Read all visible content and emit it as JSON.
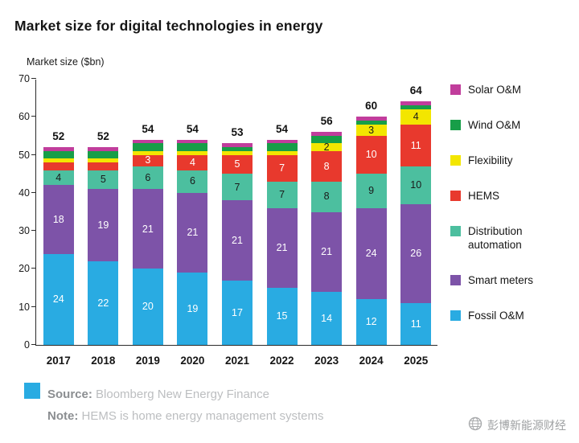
{
  "chart": {
    "title": "Market size for digital technologies in energy",
    "ylabel": "Market size ($bn)"
  },
  "chart_data": {
    "type": "stacked-bar",
    "title": "Market size for digital technologies in energy",
    "xlabel": "",
    "ylabel": "Market size ($bn)",
    "grid": false,
    "legend_position": "right",
    "ylim": [
      0,
      70
    ],
    "yticks": [
      0,
      10,
      20,
      30,
      40,
      50,
      60,
      70
    ],
    "categories": [
      "2017",
      "2018",
      "2019",
      "2020",
      "2021",
      "2022",
      "2023",
      "2024",
      "2025"
    ],
    "totals": [
      52,
      52,
      54,
      54,
      53,
      54,
      56,
      60,
      64
    ],
    "series": [
      {
        "name": "Fossil O&M",
        "color": "#29abe2",
        "label_color": "#ffffff",
        "values": [
          24,
          22,
          20,
          19,
          17,
          15,
          14,
          12,
          11
        ],
        "labels": [
          24,
          22,
          20,
          19,
          17,
          15,
          14,
          12,
          11
        ]
      },
      {
        "name": "Smart meters",
        "color": "#7d53a8",
        "label_color": "#ffffff",
        "values": [
          18,
          19,
          21,
          21,
          21,
          21,
          21,
          24,
          26
        ],
        "labels": [
          18,
          19,
          21,
          21,
          21,
          21,
          21,
          24,
          26
        ]
      },
      {
        "name": "Distribution automation",
        "color": "#4cbf9f",
        "label_color": "#1a1a1a",
        "values": [
          4,
          5,
          6,
          6,
          7,
          7,
          8,
          9,
          10
        ],
        "labels": [
          4,
          5,
          6,
          6,
          7,
          7,
          8,
          9,
          10
        ]
      },
      {
        "name": "HEMS",
        "color": "#e8392d",
        "label_color": "#ffffff",
        "values": [
          2,
          2,
          3,
          4,
          5,
          7,
          8,
          10,
          11
        ],
        "labels": [
          null,
          null,
          3,
          4,
          5,
          7,
          8,
          10,
          11
        ]
      },
      {
        "name": "Flexibility",
        "color": "#f3e600",
        "label_color": "#1a1a1a",
        "values": [
          1,
          1,
          1,
          1,
          1,
          1,
          2,
          3,
          4
        ],
        "labels": [
          null,
          null,
          null,
          null,
          null,
          null,
          2,
          3,
          4
        ]
      },
      {
        "name": "Wind O&M",
        "color": "#179e48",
        "label_color": "#ffffff",
        "values": [
          2,
          2,
          2,
          2,
          1,
          2,
          2,
          1,
          1
        ],
        "labels": [
          null,
          null,
          null,
          null,
          null,
          null,
          null,
          null,
          null
        ]
      },
      {
        "name": "Solar O&M",
        "color": "#c13d9c",
        "label_color": "#ffffff",
        "values": [
          1,
          1,
          1,
          1,
          1,
          1,
          1,
          1,
          1
        ],
        "labels": [
          null,
          null,
          null,
          null,
          null,
          null,
          null,
          null,
          null
        ]
      }
    ]
  },
  "legend": {
    "items": [
      {
        "label": "Solar O&M",
        "color": "#c13d9c"
      },
      {
        "label": "Wind O&M",
        "color": "#179e48"
      },
      {
        "label": "Flexibility",
        "color": "#f3e600"
      },
      {
        "label": "HEMS",
        "color": "#e8392d"
      },
      {
        "label": "Distribution automation",
        "color": "#4cbf9f"
      },
      {
        "label": "Smart meters",
        "color": "#7d53a8"
      },
      {
        "label": "Fossil O&M",
        "color": "#29abe2"
      }
    ]
  },
  "footer": {
    "source_label": "Source:",
    "source_text": "Bloomberg New Energy Finance",
    "note_label": "Note:",
    "note_text": "HEMS is home energy management systems",
    "watermark": "彭博新能源财经",
    "swatch_color": "#29abe2"
  }
}
